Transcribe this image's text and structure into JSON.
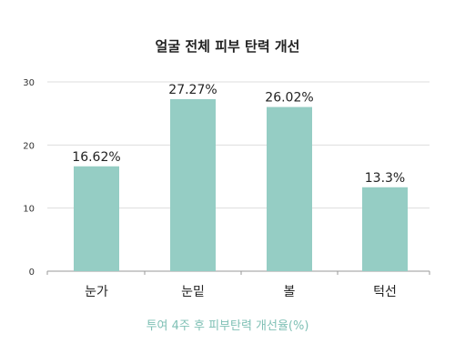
{
  "chart_data": {
    "type": "bar",
    "title": "얼굴 전체 피부 탄력 개선",
    "xlabel": "투여 4주 후 피부탄력 개선율(%)",
    "ylabel": "",
    "categories": [
      "눈가",
      "눈밑",
      "볼",
      "턱선"
    ],
    "values": [
      16.62,
      27.27,
      26.02,
      13.3
    ],
    "data_labels": [
      "16.62%",
      "27.27%",
      "26.02%",
      "13.3%"
    ],
    "ylim": [
      0,
      30
    ],
    "yticks": [
      0,
      10,
      20,
      30
    ],
    "grid": true,
    "legend": "none",
    "colors": {
      "bar": "#95cdc4",
      "xlabel": "#7fc0b5",
      "grid": "#dddddd",
      "axis": "#999999"
    }
  }
}
